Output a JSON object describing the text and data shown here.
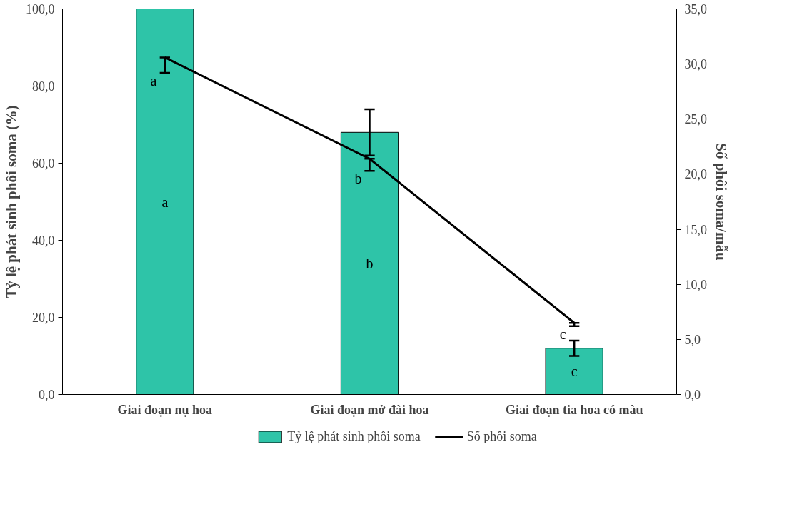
{
  "chart_data": {
    "type": "bar",
    "categories": [
      "Giai đoạn nụ hoa",
      "Giai đoạn mở đài hoa",
      "Giai đoạn tia hoa có màu"
    ],
    "ylabel": "Tỷ lệ phát sinh phôi soma (%)",
    "y2label": "Số phôi soma/mẫu",
    "series": [
      {
        "name": "Tỷ lệ phát sinh phôi soma",
        "color": "#2ec4a8",
        "values": [
          100.0,
          68.0,
          12.0
        ],
        "errors": [
          null,
          6.0,
          2.0
        ]
      },
      {
        "name": "Số phôi soma",
        "type": "line",
        "axis": "y2",
        "color": "#000000",
        "values": [
          30.6,
          21.4,
          6.5
        ],
        "errors": [
          [
            29.2,
            30.6
          ],
          [
            20.3,
            21.4
          ],
          [
            6.2,
            6.5
          ]
        ]
      }
    ],
    "ylim": [
      0,
      100
    ],
    "yticks": [
      {
        "value": 0,
        "label": "0,0"
      },
      {
        "value": 20,
        "label": "20,0"
      },
      {
        "value": 40,
        "label": "40,0"
      },
      {
        "value": 60,
        "label": "60,0"
      },
      {
        "value": 80,
        "label": "80,0"
      },
      {
        "value": 100,
        "label": "100,0"
      }
    ],
    "y2lim": [
      0,
      35
    ],
    "y2ticks": [
      {
        "value": 0,
        "label": "0,0"
      },
      {
        "value": 5,
        "label": "5,0"
      },
      {
        "value": 10,
        "label": "10,0"
      },
      {
        "value": 15,
        "label": "15,0"
      },
      {
        "value": 20,
        "label": "20,0"
      },
      {
        "value": 25,
        "label": "25,0"
      },
      {
        "value": 30,
        "label": "30,0"
      },
      {
        "value": 35,
        "label": "35,0"
      }
    ],
    "annotations": [
      "a",
      "a",
      "b",
      "b",
      "c",
      "c"
    ],
    "grid": false,
    "legend": "bottom"
  }
}
